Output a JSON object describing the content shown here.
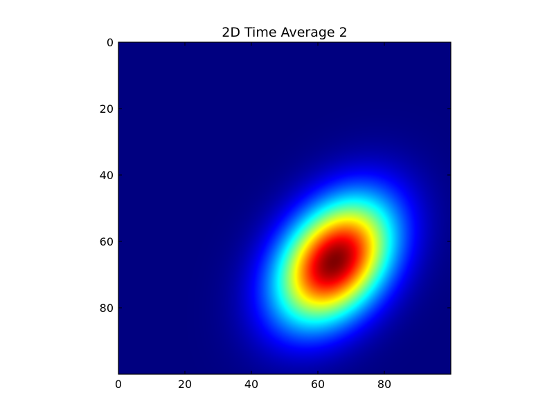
{
  "chart_data": {
    "type": "heatmap",
    "title": "2D Time Average 2",
    "xlabel": "",
    "ylabel": "",
    "xlim": [
      0,
      100
    ],
    "ylim": [
      100,
      0
    ],
    "x_ticks": [
      0,
      20,
      40,
      60,
      80
    ],
    "y_ticks": [
      0,
      20,
      40,
      60,
      80
    ],
    "grid": false,
    "colormap": "jet",
    "grid_size": [
      100,
      100
    ],
    "peak": {
      "x": 65,
      "y": 66,
      "value": 1.0
    },
    "background_value": 0.0,
    "spread": {
      "sigma_x": 12,
      "sigma_y": 13,
      "correlation": -0.35
    }
  }
}
